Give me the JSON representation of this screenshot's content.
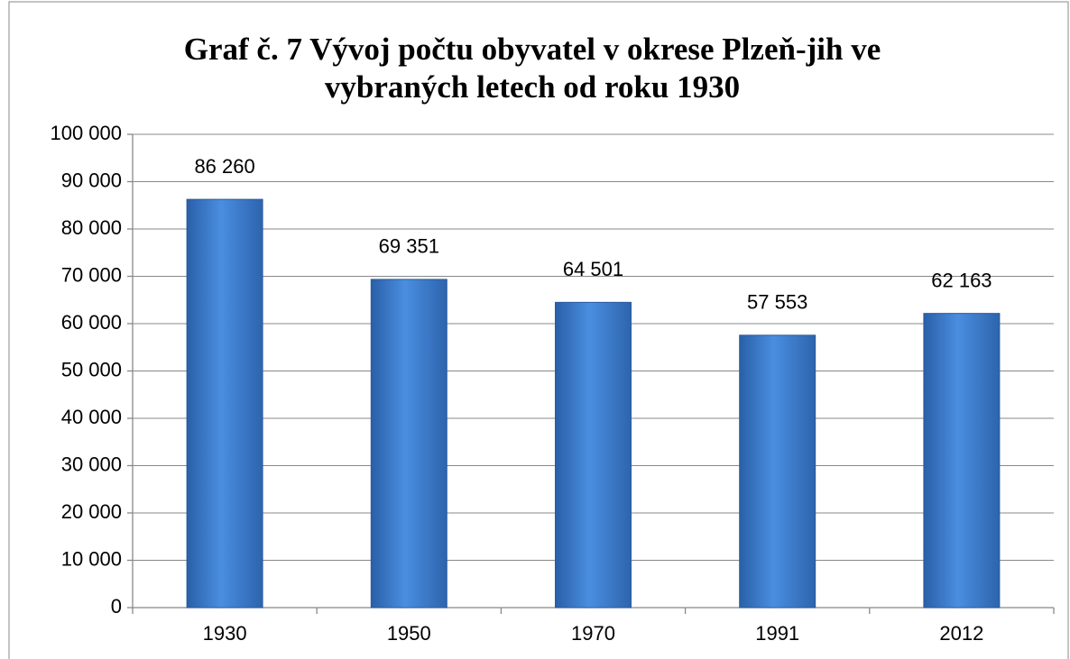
{
  "chart_data": {
    "type": "bar",
    "title": [
      "Graf č. 7 Vývoj počtu obyvatel v okrese Plzeň-jih ve",
      "vybraných letech od roku 1930"
    ],
    "categories": [
      "1930",
      "1950",
      "1970",
      "1991",
      "2012"
    ],
    "values": [
      86260,
      69351,
      64501,
      57553,
      62163
    ],
    "value_labels": [
      "86 260",
      "69 351",
      "64 501",
      "57 553",
      "62 163"
    ],
    "color": "#3d7fd0",
    "ylim": [
      0,
      100000
    ],
    "yticks": [
      0,
      {
        "value": 10000,
        "label": "10 000"
      },
      {
        "value": 20000,
        "label": "20 000"
      },
      {
        "value": 30000,
        "label": "30 000"
      },
      {
        "value": 40000,
        "label": "40 000"
      },
      {
        "value": 50000,
        "label": "50 000"
      },
      {
        "value": 60000,
        "label": "60 000"
      },
      {
        "value": 70000,
        "label": "70 000"
      },
      {
        "value": 80000,
        "label": "80 000"
      },
      {
        "value": 90000,
        "label": "90 000"
      },
      {
        "value": 100000,
        "label": "100 000"
      }
    ],
    "grid": true
  }
}
